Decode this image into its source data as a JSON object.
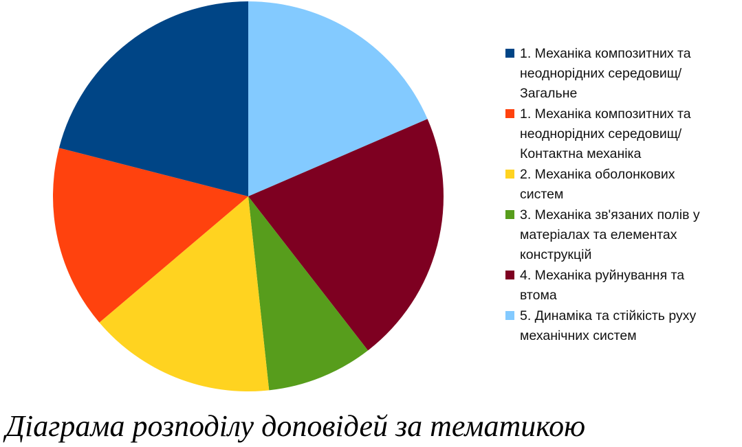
{
  "chart_data": {
    "type": "pie",
    "title": "Діаграма розподілу доповідей за тематикою",
    "start_angle_deg": 0,
    "direction": "clockwise",
    "legend_position": "right",
    "slices": [
      {
        "label": "5. Динаміка та стійкість руху\nмеханічних систем",
        "value": 18.5,
        "color": "#83caff"
      },
      {
        "label": "4. Механіка руйнування та\nвтома",
        "value": 21.0,
        "color": "#7e0021"
      },
      {
        "label": "3. Механіка зв'язаних полів у\nматеріалах та елементах\nконструкцій",
        "value": 8.8,
        "color": "#579d1c"
      },
      {
        "label": "2. Механіка оболонкових\nсистем",
        "value": 15.5,
        "color": "#ffd320"
      },
      {
        "label": "1. Механіка композитних та\nнеоднорідних середовищ/\nКонтактна механіка",
        "value": 15.2,
        "color": "#ff420e"
      },
      {
        "label": "1. Механіка композитних та\nнеоднорідних середовищ/\nЗагальне",
        "value": 21.0,
        "color": "#004586"
      }
    ],
    "legend_order": [
      5,
      4,
      3,
      2,
      1,
      0
    ]
  }
}
